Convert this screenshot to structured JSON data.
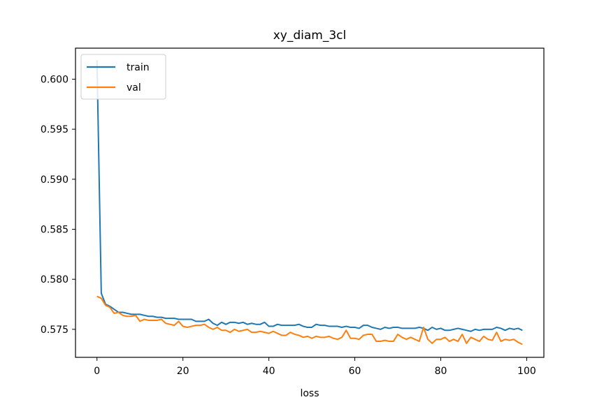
{
  "chart_data": {
    "type": "line",
    "title": "xy_diam_3cl",
    "xlabel": "loss",
    "ylabel": "",
    "xlim": [
      -5,
      104
    ],
    "ylim": [
      0.5722,
      0.6031
    ],
    "xticks": [
      0,
      20,
      40,
      60,
      80,
      100
    ],
    "yticks": [
      0.575,
      0.58,
      0.585,
      0.59,
      0.595,
      0.6
    ],
    "ytick_labels": [
      "0.575",
      "0.580",
      "0.585",
      "0.590",
      "0.595",
      "0.600"
    ],
    "grid": false,
    "legend_position": "upper-left",
    "series": [
      {
        "name": "train",
        "color": "#1f77b4",
        "x": [
          0,
          1,
          2,
          3,
          4,
          5,
          6,
          7,
          8,
          9,
          10,
          11,
          12,
          13,
          14,
          15,
          16,
          17,
          18,
          19,
          20,
          21,
          22,
          23,
          24,
          25,
          26,
          27,
          28,
          29,
          30,
          31,
          32,
          33,
          34,
          35,
          36,
          37,
          38,
          39,
          40,
          41,
          42,
          43,
          44,
          45,
          46,
          47,
          48,
          49,
          50,
          51,
          52,
          53,
          54,
          55,
          56,
          57,
          58,
          59,
          60,
          61,
          62,
          63,
          64,
          65,
          66,
          67,
          68,
          69,
          70,
          71,
          72,
          73,
          74,
          75,
          76,
          77,
          78,
          79,
          80,
          81,
          82,
          83,
          84,
          85,
          86,
          87,
          88,
          89,
          90,
          91,
          92,
          93,
          94,
          95,
          96,
          97,
          98,
          99
        ],
        "values": [
          0.6019,
          0.5786,
          0.5775,
          0.5773,
          0.577,
          0.5767,
          0.5767,
          0.5766,
          0.5765,
          0.5765,
          0.5765,
          0.5764,
          0.5763,
          0.5763,
          0.5762,
          0.5762,
          0.5761,
          0.5761,
          0.5761,
          0.576,
          0.576,
          0.576,
          0.576,
          0.5758,
          0.5758,
          0.5758,
          0.576,
          0.5756,
          0.5754,
          0.5757,
          0.5755,
          0.5757,
          0.5757,
          0.5756,
          0.5757,
          0.5755,
          0.5756,
          0.5755,
          0.5755,
          0.5757,
          0.5753,
          0.5753,
          0.5755,
          0.5754,
          0.5754,
          0.5754,
          0.5754,
          0.5755,
          0.5753,
          0.5752,
          0.5752,
          0.5755,
          0.5754,
          0.5754,
          0.5753,
          0.5753,
          0.5753,
          0.5752,
          0.5753,
          0.5752,
          0.5752,
          0.5751,
          0.5754,
          0.5754,
          0.5752,
          0.5751,
          0.575,
          0.5752,
          0.5751,
          0.5752,
          0.5752,
          0.5751,
          0.5751,
          0.5751,
          0.5751,
          0.5752,
          0.5751,
          0.5749,
          0.5752,
          0.575,
          0.5751,
          0.5749,
          0.5749,
          0.575,
          0.5751,
          0.575,
          0.5749,
          0.5748,
          0.575,
          0.5749,
          0.575,
          0.575,
          0.575,
          0.5752,
          0.5751,
          0.5749,
          0.5751,
          0.575,
          0.5751,
          0.5749
        ]
      },
      {
        "name": "val",
        "color": "#ff7f0e",
        "x": [
          0,
          1,
          2,
          3,
          4,
          5,
          6,
          7,
          8,
          9,
          10,
          11,
          12,
          13,
          14,
          15,
          16,
          17,
          18,
          19,
          20,
          21,
          22,
          23,
          24,
          25,
          26,
          27,
          28,
          29,
          30,
          31,
          32,
          33,
          34,
          35,
          36,
          37,
          38,
          39,
          40,
          41,
          42,
          43,
          44,
          45,
          46,
          47,
          48,
          49,
          50,
          51,
          52,
          53,
          54,
          55,
          56,
          57,
          58,
          59,
          60,
          61,
          62,
          63,
          64,
          65,
          66,
          67,
          68,
          69,
          70,
          71,
          72,
          73,
          74,
          75,
          76,
          77,
          78,
          79,
          80,
          81,
          82,
          83,
          84,
          85,
          86,
          87,
          88,
          89,
          90,
          91,
          92,
          93,
          94,
          95,
          96,
          97,
          98,
          99
        ],
        "values": [
          0.5783,
          0.5781,
          0.5774,
          0.5772,
          0.5766,
          0.5767,
          0.5764,
          0.5763,
          0.5763,
          0.5764,
          0.5758,
          0.576,
          0.5759,
          0.5759,
          0.5759,
          0.576,
          0.5756,
          0.5755,
          0.5754,
          0.5758,
          0.5753,
          0.5752,
          0.5753,
          0.5754,
          0.5754,
          0.5755,
          0.5752,
          0.575,
          0.5752,
          0.5749,
          0.5749,
          0.5747,
          0.575,
          0.5748,
          0.5749,
          0.575,
          0.5747,
          0.5747,
          0.5748,
          0.5747,
          0.5746,
          0.5748,
          0.5746,
          0.5744,
          0.5744,
          0.5747,
          0.5745,
          0.5744,
          0.5742,
          0.5743,
          0.5741,
          0.5743,
          0.5742,
          0.5742,
          0.5743,
          0.5741,
          0.574,
          0.5742,
          0.5749,
          0.5741,
          0.5741,
          0.574,
          0.5744,
          0.5745,
          0.5745,
          0.5738,
          0.5738,
          0.5739,
          0.5738,
          0.5738,
          0.5745,
          0.5742,
          0.574,
          0.5742,
          0.574,
          0.5738,
          0.5752,
          0.574,
          0.5736,
          0.574,
          0.574,
          0.5742,
          0.5738,
          0.574,
          0.5738,
          0.5745,
          0.5736,
          0.5742,
          0.574,
          0.5738,
          0.5743,
          0.574,
          0.5739,
          0.5747,
          0.5738,
          0.574,
          0.5739,
          0.574,
          0.5737,
          0.5735
        ]
      }
    ]
  }
}
